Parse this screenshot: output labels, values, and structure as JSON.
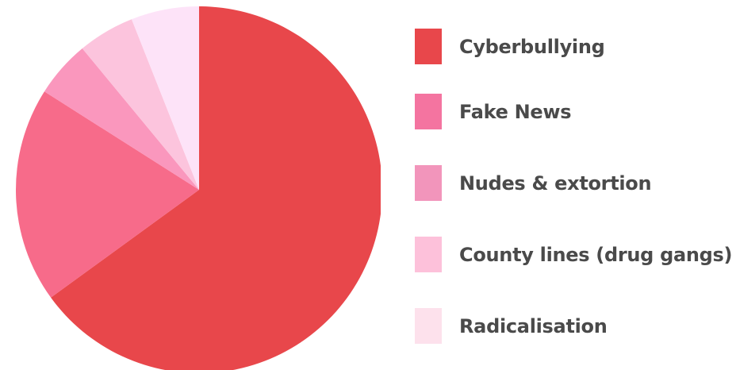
{
  "chart_data": {
    "type": "pie",
    "title": "",
    "legend_position": "right",
    "slices": [
      {
        "label": "Cyberbullying",
        "value": 65,
        "color": "#e8474b"
      },
      {
        "label": "Fake News",
        "value": 19,
        "color": "#f76b8a"
      },
      {
        "label": "Nudes & extortion",
        "value": 5,
        "color": "#fa97bd"
      },
      {
        "label": "County lines (drug gangs)",
        "value": 5,
        "color": "#fcc4dd"
      },
      {
        "label": "Radicalisation",
        "value": 6,
        "color": "#fde3f8"
      }
    ],
    "legend_colors": [
      "#e8474b",
      "#f474a0",
      "#f295bb",
      "#fdc1da",
      "#fde1ec"
    ]
  }
}
